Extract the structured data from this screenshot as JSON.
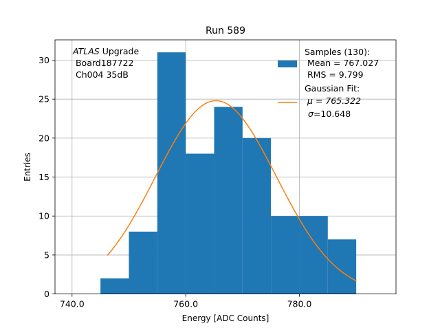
{
  "chart_data": {
    "type": "bar",
    "title": "Run 589",
    "xlabel": "Energy [ADC Counts]",
    "ylabel": "Entries",
    "xlim": [
      737,
      797
    ],
    "ylim": [
      0,
      32.6
    ],
    "grid": true,
    "xticks": [
      740,
      760,
      780
    ],
    "xtick_labels": [
      "740.0",
      "760.0",
      "780.0"
    ],
    "yticks": [
      0,
      5,
      10,
      15,
      20,
      25,
      30
    ],
    "ytick_labels": [
      "0",
      "5",
      "10",
      "15",
      "20",
      "25",
      "30"
    ],
    "bins": [
      {
        "x0": 745,
        "x1": 750,
        "count": 2
      },
      {
        "x0": 750,
        "x1": 755,
        "count": 8
      },
      {
        "x0": 755,
        "x1": 760,
        "count": 31
      },
      {
        "x0": 760,
        "x1": 765,
        "count": 18
      },
      {
        "x0": 765,
        "x1": 770,
        "count": 24
      },
      {
        "x0": 770,
        "x1": 775,
        "count": 20
      },
      {
        "x0": 775,
        "x1": 780,
        "count": 10
      },
      {
        "x0": 780,
        "x1": 785,
        "count": 10
      },
      {
        "x0": 785,
        "x1": 790,
        "count": 7
      }
    ],
    "fit": {
      "name": "Gaussian Fit",
      "mu": 765.322,
      "sigma": 10.648,
      "amplitude": 24.8,
      "x_range": [
        746.2,
        790
      ]
    },
    "bar_color": "#1f77b4",
    "fit_color": "#ff7f0e",
    "annotation": {
      "italic": "ATLAS",
      "rest": " Upgrade",
      "line2": " Board187722",
      "line3": " Ch004 35dB"
    },
    "legend": {
      "hist_lines": [
        "Samples (130):",
        " Mean = 767.027",
        " RMS = 9.799"
      ],
      "fit_line1": "Gaussian Fit:",
      "fit_line2": " μ = 765.322",
      "fit_sigma_symbol": "σ",
      "fit_sigma_rest": "=10.648"
    }
  }
}
